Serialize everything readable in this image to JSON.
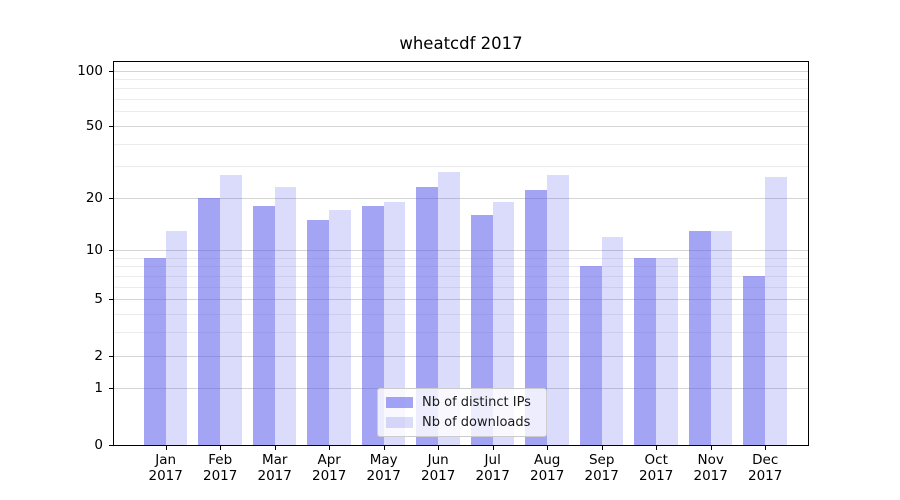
{
  "chart_data": {
    "type": "bar",
    "title": "wheatcdf 2017",
    "months": [
      "Jan",
      "Feb",
      "Mar",
      "Apr",
      "May",
      "Jun",
      "Jul",
      "Aug",
      "Sep",
      "Oct",
      "Nov",
      "Dec"
    ],
    "year": "2017",
    "categories": [
      "Jan 2017",
      "Feb 2017",
      "Mar 2017",
      "Apr 2017",
      "May 2017",
      "Jun 2017",
      "Jul 2017",
      "Aug 2017",
      "Sep 2017",
      "Oct 2017",
      "Nov 2017",
      "Dec 2017"
    ],
    "series": [
      {
        "name": "Nb of distinct IPs",
        "values": [
          9,
          20,
          18,
          15,
          18,
          23,
          16,
          22,
          8,
          9,
          13,
          7
        ],
        "color": "rgba(92,92,238,0.56)"
      },
      {
        "name": "Nb of downloads",
        "values": [
          13,
          27,
          23,
          17,
          19,
          28,
          19,
          27,
          12,
          9,
          13,
          26
        ],
        "color": "rgba(92,92,238,0.22)"
      }
    ],
    "yscale": "log1p",
    "ylabel": "",
    "xlabel": "",
    "y_tick_values": [
      0,
      1,
      2,
      5,
      10,
      20,
      50,
      100
    ],
    "y_tick_labels": [
      "0",
      "1",
      "2",
      "5",
      "10",
      "20",
      "50",
      "100"
    ],
    "y_minor_gridlines": [
      3,
      4,
      6,
      7,
      8,
      9,
      30,
      40,
      60,
      70,
      80,
      90
    ],
    "y_major_gridlines": [
      1,
      2,
      5,
      10,
      20,
      50,
      100
    ],
    "ylim": [
      0,
      113
    ],
    "grid": true,
    "legend_position": "lower-center"
  },
  "colors": {
    "background": "#ffffff",
    "bar_distinct_ips": "rgba(92,92,238,0.56)",
    "bar_downloads": "rgba(92,92,238,0.22)",
    "gridline_major": "#d4d4d4",
    "gridline_minor": "#ececec",
    "axis": "#000000",
    "text": "#000000",
    "legend_border": "#cccccc",
    "legend_background": "rgba(255,255,255,0.8)"
  }
}
